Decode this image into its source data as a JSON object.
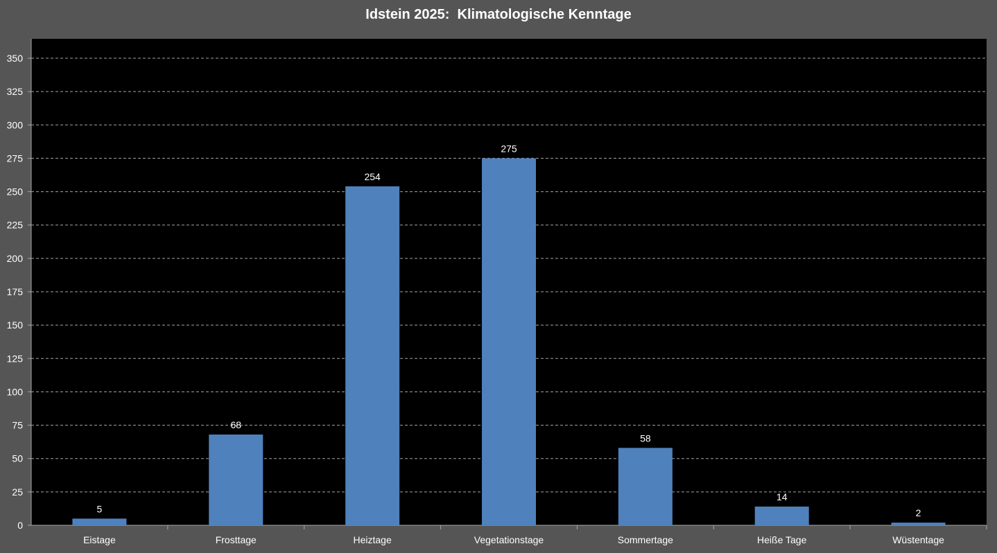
{
  "chart_data": {
    "type": "bar",
    "title": "Idstein 2025:  Klimatologische Kenntage",
    "categories": [
      "Eistage",
      "Frosttage",
      "Heiztage",
      "Vegetationstage",
      "Sommertage",
      "Heiße Tage",
      "Wüstentage"
    ],
    "values": [
      5,
      68,
      254,
      275,
      58,
      14,
      2
    ],
    "ylim": [
      0,
      350
    ],
    "ytick_step": 25,
    "grid": true,
    "legend": "none",
    "colors": {
      "background": "#555555",
      "plot_area": "#000000",
      "bar": "#4f81bd",
      "text": "#ffffff",
      "grid": "#a6a6a6"
    }
  }
}
